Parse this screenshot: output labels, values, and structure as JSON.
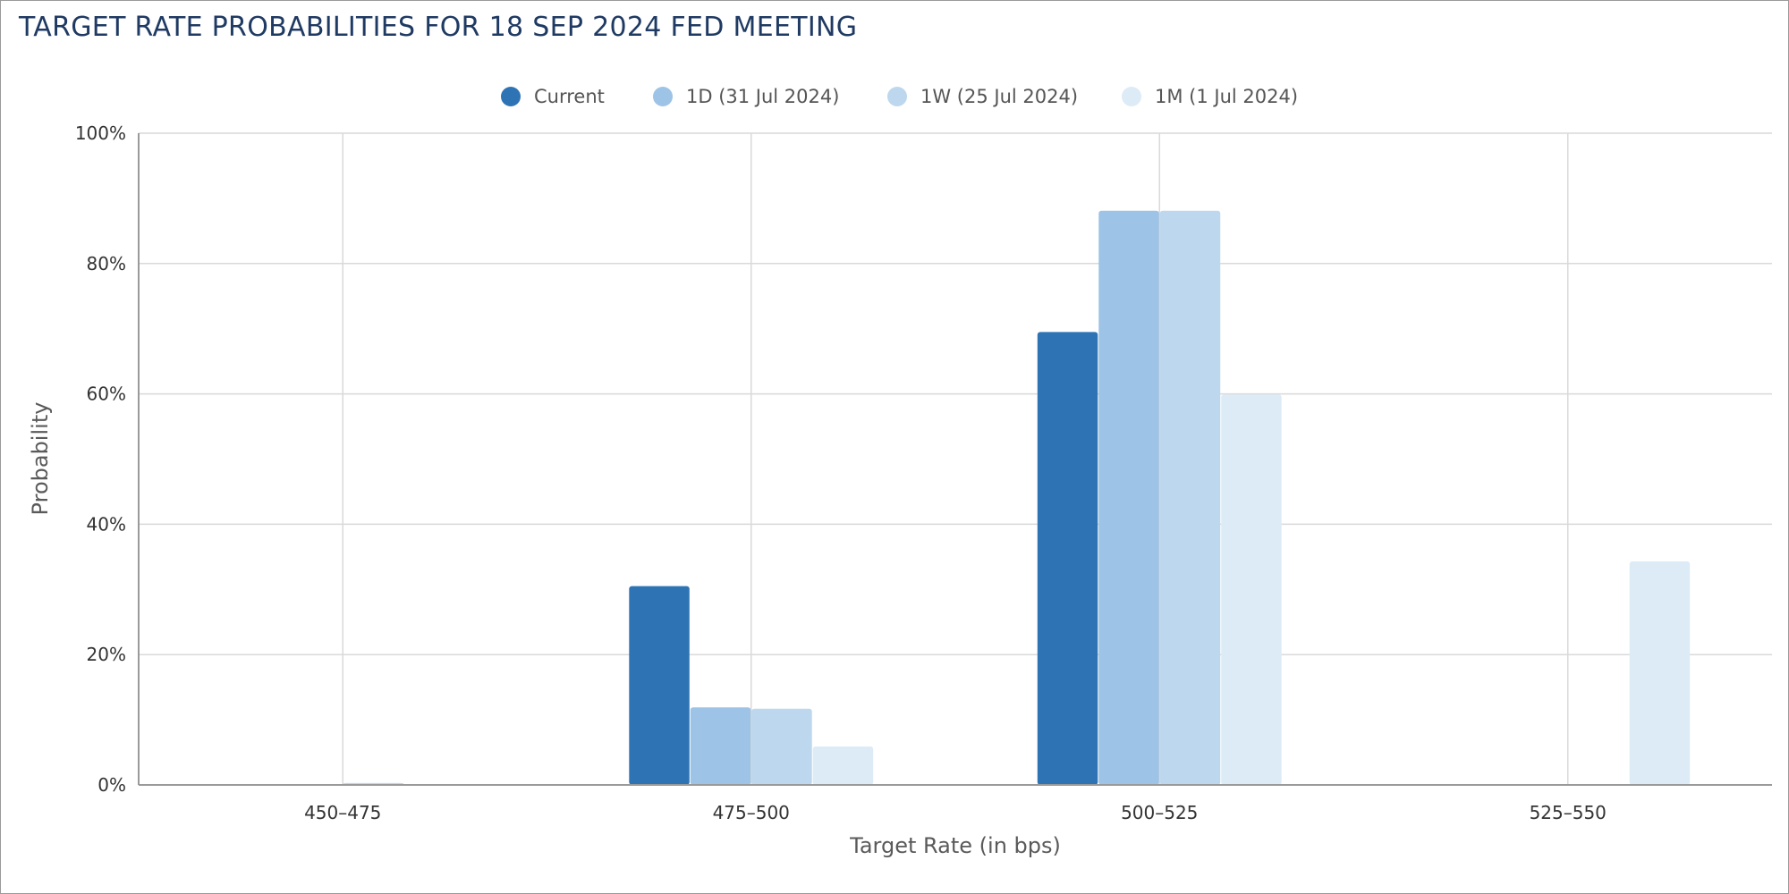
{
  "chart_data": {
    "type": "bar",
    "title": "TARGET RATE PROBABILITIES FOR 18 SEP 2024 FED MEETING",
    "xlabel": "Target Rate (in bps)",
    "ylabel": "Probability",
    "categories": [
      "450–475",
      "475–500",
      "500–525",
      "525–550"
    ],
    "ylim": [
      0,
      100
    ],
    "yticks": [
      "0%",
      "20%",
      "40%",
      "60%",
      "80%",
      "100%"
    ],
    "grid": true,
    "legend_position": "top-center",
    "series": [
      {
        "name": "Current",
        "color": "#2e74b5",
        "values": [
          0,
          30.5,
          69.5,
          0
        ]
      },
      {
        "name": "1D (31 Jul 2024)",
        "color": "#9dc3e6",
        "values": [
          0,
          11.9,
          88.1,
          0
        ]
      },
      {
        "name": "1W (25 Jul 2024)",
        "color": "#bdd7ee",
        "values": [
          0.3,
          11.7,
          88.1,
          0
        ]
      },
      {
        "name": "1M (1 Jul 2024)",
        "color": "#ddebf7",
        "values": [
          0,
          5.9,
          59.9,
          34.3
        ]
      }
    ]
  }
}
